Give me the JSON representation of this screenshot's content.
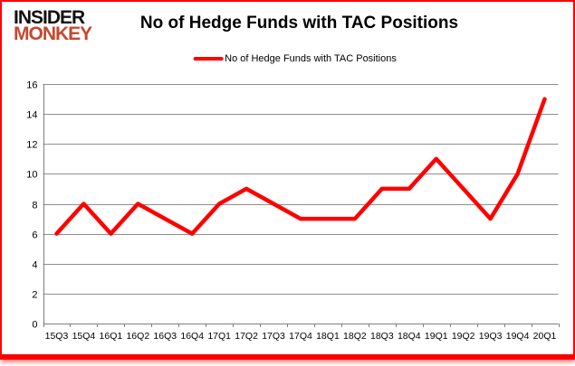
{
  "brand": {
    "name_top": "INSIDER",
    "name_bottom": "MONKEY",
    "accent_color": "#c5482e"
  },
  "title": "No of Hedge Funds with TAC Positions",
  "legend": {
    "label": "No of Hedge Funds with TAC Positions",
    "color": "#ff0000"
  },
  "chart_data": {
    "type": "line",
    "title": "No of Hedge Funds with TAC Positions",
    "categories": [
      "15Q3",
      "15Q4",
      "16Q1",
      "16Q2",
      "16Q3",
      "16Q4",
      "17Q1",
      "17Q2",
      "17Q3",
      "17Q4",
      "18Q1",
      "18Q2",
      "18Q3",
      "18Q4",
      "19Q1",
      "19Q2",
      "19Q3",
      "19Q4",
      "20Q1"
    ],
    "series": [
      {
        "name": "No of Hedge Funds with TAC Positions",
        "color": "#ff0000",
        "values": [
          6,
          8,
          6,
          8,
          7,
          6,
          8,
          9,
          8,
          7,
          7,
          7,
          9,
          9,
          11,
          9,
          7,
          10,
          15
        ]
      }
    ],
    "xlabel": "",
    "ylabel": "",
    "ylim": [
      0,
      16
    ],
    "ytick_step": 2,
    "grid": true,
    "legend_position": "top-center"
  },
  "colors": {
    "grid": "#8f8f8f",
    "axis": "#7f7f7f",
    "frame_border": "#ff0000",
    "text": "#000000"
  }
}
